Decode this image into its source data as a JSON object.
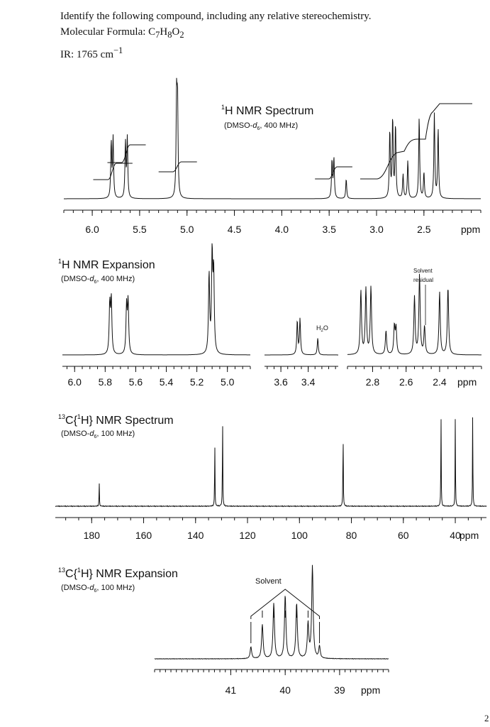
{
  "problem": {
    "prompt": "Identify the following compound, including any relative stereochemistry.",
    "formula_label": "Molecular Formula: ",
    "formula": {
      "C": "C",
      "c_sub": "7",
      "H": "H",
      "h_sub": "8",
      "O": "O",
      "o_sub": "2"
    },
    "ir_label": "IR: 1765 cm",
    "ir_sup": "−1"
  },
  "page_number": "2",
  "chart_data": [
    {
      "type": "line",
      "title_sup": "1",
      "title": "H NMR Spectrum",
      "subtitle_pre": "(DMSO-",
      "subtitle_d": "d",
      "subtitle_sub": "6",
      "subtitle_post": ", 400 MHz)",
      "xlabel": "ppm",
      "xlim": [
        6.3,
        1.9
      ],
      "ticks": [
        "6.0",
        "5.5",
        "5.0",
        "4.5",
        "4.0",
        "3.5",
        "3.0",
        "2.5"
      ],
      "peaks": [
        {
          "ppm": 5.8,
          "height": 0.56
        },
        {
          "ppm": 5.78,
          "height": 0.6
        },
        {
          "ppm": 5.65,
          "height": 0.56
        },
        {
          "ppm": 5.63,
          "height": 0.6
        },
        {
          "ppm": 5.11,
          "height": 0.98
        },
        {
          "ppm": 5.1,
          "height": 0.92
        },
        {
          "ppm": 3.47,
          "height": 0.38
        },
        {
          "ppm": 3.45,
          "height": 0.4
        },
        {
          "ppm": 3.32,
          "height": 0.2
        },
        {
          "ppm": 2.86,
          "height": 0.68
        },
        {
          "ppm": 2.83,
          "height": 0.8
        },
        {
          "ppm": 2.8,
          "height": 0.74
        },
        {
          "ppm": 2.72,
          "height": 0.24
        },
        {
          "ppm": 2.67,
          "height": 0.38
        },
        {
          "ppm": 2.55,
          "height": 0.82
        },
        {
          "ppm": 2.5,
          "height": 0.26
        },
        {
          "ppm": 2.39,
          "height": 0.85
        },
        {
          "ppm": 2.35,
          "height": 0.7
        }
      ]
    },
    {
      "type": "line",
      "title_sup": "1",
      "title": "H NMR Expansion",
      "subtitle_pre": "(DMSO-",
      "subtitle_d": "d",
      "subtitle_sub": "6",
      "subtitle_post": ", 400 MHz)",
      "xlabel": "ppm",
      "annotations": {
        "solvent": [
          "Solvent",
          "residual"
        ],
        "water_pre": "H",
        "water_sub": "2",
        "water_post": "O"
      },
      "segments": [
        {
          "xlim": [
            6.08,
            4.85
          ],
          "ticks": [
            "6.0",
            "5.8",
            "5.6",
            "5.4",
            "5.2",
            "5.0"
          ],
          "peaks": [
            {
              "ppm": 5.77,
              "height": 0.5
            },
            {
              "ppm": 5.76,
              "height": 0.54
            },
            {
              "ppm": 5.66,
              "height": 0.48
            },
            {
              "ppm": 5.65,
              "height": 0.52
            },
            {
              "ppm": 5.12,
              "height": 0.8
            },
            {
              "ppm": 5.1,
              "height": 0.98
            },
            {
              "ppm": 5.09,
              "height": 0.8
            }
          ]
        },
        {
          "xlim": [
            3.72,
            3.18
          ],
          "ticks": [
            "3.6",
            "3.4"
          ],
          "peaks": [
            {
              "ppm": 3.48,
              "height": 0.34
            },
            {
              "ppm": 3.46,
              "height": 0.36
            },
            {
              "ppm": 3.33,
              "height": 0.17
            }
          ]
        },
        {
          "xlim": [
            2.95,
            2.15
          ],
          "ticks": [
            "2.8",
            "2.6",
            "2.4"
          ],
          "peaks": [
            {
              "ppm": 2.87,
              "height": 0.64
            },
            {
              "ppm": 2.84,
              "height": 0.66
            },
            {
              "ppm": 2.81,
              "height": 0.68
            },
            {
              "ppm": 2.72,
              "height": 0.24
            },
            {
              "ppm": 2.67,
              "height": 0.28
            },
            {
              "ppm": 2.66,
              "height": 0.26
            },
            {
              "ppm": 2.55,
              "height": 0.58
            },
            {
              "ppm": 2.52,
              "height": 0.8
            },
            {
              "ppm": 2.49,
              "height": 0.28
            },
            {
              "ppm": 2.4,
              "height": 0.63
            },
            {
              "ppm": 2.35,
              "height": 0.68
            }
          ]
        }
      ]
    },
    {
      "type": "line",
      "title_sup": "13",
      "title_mid": "C{",
      "title_sup2": "1",
      "title": "H} NMR Spectrum",
      "subtitle_pre": "(DMSO-",
      "subtitle_d": "d",
      "subtitle_sub": "6",
      "subtitle_post": ", 100 MHz)",
      "xlabel": "ppm",
      "xlim": [
        194,
        28
      ],
      "ticks": [
        "180",
        "160",
        "140",
        "120",
        "100",
        "80",
        "60",
        "40"
      ],
      "peaks": [
        {
          "ppm": 177.1,
          "height": 0.26
        },
        {
          "ppm": 132.6,
          "height": 0.7
        },
        {
          "ppm": 129.6,
          "height": 0.98
        },
        {
          "ppm": 83.2,
          "height": 0.88
        },
        {
          "ppm": 45.5,
          "height": 1.0
        },
        {
          "ppm": 40.0,
          "height": 0.93
        },
        {
          "ppm": 33.3,
          "height": 1.0
        }
      ]
    },
    {
      "type": "line",
      "title_sup": "13",
      "title_mid": "C{",
      "title_sup2": "1",
      "title": "H} NMR Expansion",
      "subtitle_pre": "(DMSO-",
      "subtitle_d": "d",
      "subtitle_sub": "6",
      "subtitle_post": ", 100 MHz)",
      "xlabel": "ppm",
      "annotations": {
        "solvent": "Solvent"
      },
      "xlim": [
        42.4,
        38.1
      ],
      "ticks": [
        "41",
        "40",
        "39"
      ],
      "peaks": [
        {
          "ppm": 40.63,
          "height": 0.13
        },
        {
          "ppm": 40.42,
          "height": 0.37
        },
        {
          "ppm": 40.21,
          "height": 0.6
        },
        {
          "ppm": 40.0,
          "height": 0.69
        },
        {
          "ppm": 39.79,
          "height": 0.6
        },
        {
          "ppm": 39.58,
          "height": 0.37
        },
        {
          "ppm": 39.5,
          "height": 1.0
        },
        {
          "ppm": 39.37,
          "height": 0.13
        }
      ]
    }
  ]
}
